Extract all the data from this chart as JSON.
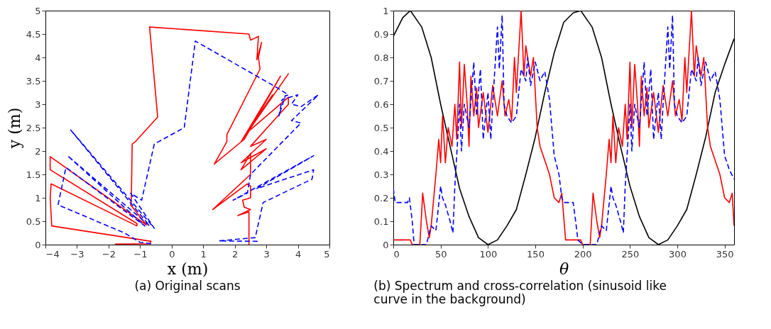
{
  "chart_data": [
    {
      "type": "line",
      "title": "(a) Original scans",
      "xlabel": "x (m)",
      "ylabel": "y (m)",
      "xlim": [
        -4,
        5
      ],
      "ylim": [
        0,
        5
      ],
      "xticks": [
        -4,
        -3,
        -2,
        -1,
        0,
        1,
        2,
        3,
        4,
        5
      ],
      "yticks": [
        0,
        0.5,
        1,
        1.5,
        2,
        2.5,
        3,
        3.5,
        4,
        4.5,
        5
      ],
      "grid": false,
      "series": [
        {
          "color": "#ff0000",
          "line_style": "solid",
          "x": [
            -1.8,
            -0.7,
            -0.65,
            -3.8,
            -3.85,
            -3.82,
            -1.1,
            -1.1,
            -3.85,
            -3.85,
            -0.8,
            -1.3,
            -1.28,
            -1.25,
            -1.15,
            -0.45,
            -0.45,
            -0.7,
            2.45,
            2.5,
            2.6,
            2.75,
            2.7,
            2.85,
            2.75,
            2.8,
            1.75,
            1.75,
            1.35,
            2.3,
            3.45,
            2.2,
            3.7,
            2.3,
            3.2,
            2.4,
            3.7,
            3.7,
            2.5,
            3.0,
            2.2,
            3.0,
            2.2,
            2.5,
            2.5,
            1.3,
            2.4,
            2.5,
            2.5,
            2.25,
            2.3,
            2.5,
            2.1,
            2.45,
            2.45
          ],
          "values": [
            0.01,
            0.02,
            0.07,
            0.4,
            1.0,
            1.3,
            0.4,
            0.45,
            1.6,
            1.88,
            0.42,
            0.85,
            0.9,
            2.15,
            2.2,
            2.72,
            2.78,
            4.65,
            4.5,
            4.37,
            4.4,
            4.45,
            3.95,
            4.32,
            4.0,
            3.75,
            2.35,
            2.2,
            1.72,
            2.25,
            3.6,
            2.2,
            3.65,
            2.3,
            3.2,
            2.4,
            3.15,
            3.0,
            2.1,
            2.25,
            1.75,
            2.05,
            1.6,
            1.95,
            1.5,
            0.75,
            1.3,
            1.25,
            1.0,
            0.95,
            0.8,
            0.75,
            0.62,
            0.7,
            0.0
          ]
        },
        {
          "color": "#0000ff",
          "line_style": "dashed",
          "x": [
            -0.65,
            -1.0,
            -1.5,
            -3.6,
            -3.35,
            -0.85,
            -3.3,
            -0.7,
            -3.2,
            -0.55,
            -1.3,
            -0.95,
            -0.55,
            0.4,
            0.75,
            3.35,
            3.7,
            3.6,
            3.4,
            3.5,
            4.0,
            3.8,
            4.1,
            4.65,
            3.8,
            4.1,
            2.5,
            2.4,
            1.95,
            4.5,
            2.7,
            4.5,
            4.45,
            2.9,
            2.65,
            1.5,
            2.75
          ],
          "values": [
            0.02,
            0.05,
            0.25,
            0.85,
            1.65,
            0.4,
            1.9,
            0.4,
            2.45,
            0.35,
            1.1,
            0.95,
            2.15,
            2.5,
            4.35,
            3.35,
            3.2,
            3.18,
            2.75,
            3.1,
            3.2,
            3.0,
            2.95,
            3.2,
            2.65,
            2.6,
            1.5,
            1.1,
            0.95,
            1.9,
            1.2,
            1.6,
            1.4,
            0.9,
            0.15,
            0.08,
            0.07
          ]
        }
      ]
    },
    {
      "type": "line",
      "title": "(b) Spectrum and cross-correlation (sinusoid like curve in the background)",
      "xlabel": "θ",
      "xlim": [
        0,
        360
      ],
      "ylim": [
        0,
        1
      ],
      "xticks": [
        0,
        50,
        100,
        150,
        200,
        250,
        300,
        350
      ],
      "yticks": [
        0,
        0.1,
        0.2,
        0.3,
        0.4,
        0.5,
        0.6,
        0.7,
        0.8,
        0.9,
        1
      ],
      "grid": false,
      "series": [
        {
          "color": "#000000",
          "line_style": "solid",
          "x": [
            0,
            10,
            18,
            30,
            40,
            50,
            60,
            70,
            80,
            90,
            100,
            110,
            120,
            130,
            140,
            150,
            160,
            170,
            180,
            190,
            198,
            210,
            220,
            230,
            240,
            250,
            260,
            270,
            280,
            290,
            300,
            310,
            320,
            330,
            340,
            350,
            360
          ],
          "values": [
            0.89,
            0.97,
            1.0,
            0.93,
            0.8,
            0.6,
            0.42,
            0.24,
            0.12,
            0.03,
            0.0,
            0.02,
            0.08,
            0.15,
            0.3,
            0.46,
            0.65,
            0.82,
            0.95,
            0.99,
            1.0,
            0.93,
            0.8,
            0.6,
            0.42,
            0.25,
            0.12,
            0.03,
            0.0,
            0.02,
            0.08,
            0.15,
            0.3,
            0.46,
            0.65,
            0.77,
            0.88
          ]
        },
        {
          "color": "#ff0000",
          "line_style": "solid",
          "x": [
            0,
            18,
            20,
            28,
            30,
            31,
            35,
            38,
            40,
            45,
            48,
            50,
            52,
            55,
            58,
            62,
            65,
            67,
            70,
            72,
            75,
            78,
            80,
            82,
            85,
            88,
            90,
            95,
            100,
            105,
            110,
            115,
            118,
            122,
            125,
            128,
            130,
            135,
            138,
            140,
            145,
            148,
            150,
            152,
            155,
            165,
            170,
            175,
            178,
            182,
            198,
            200,
            208,
            210,
            211,
            215,
            218,
            220,
            225,
            228,
            230,
            232,
            235,
            238,
            242,
            245,
            247,
            250,
            252,
            255,
            258,
            260,
            262,
            265,
            268,
            270,
            275,
            280,
            285,
            290,
            295,
            298,
            302,
            305,
            308,
            310,
            315,
            318,
            320,
            325,
            328,
            330,
            332,
            335,
            345,
            350,
            355,
            358,
            360
          ],
          "values": [
            0.02,
            0.02,
            0.0,
            0.0,
            0.14,
            0.22,
            0.1,
            0.03,
            0.08,
            0.3,
            0.45,
            0.35,
            0.55,
            0.35,
            0.5,
            0.42,
            0.6,
            0.45,
            0.78,
            0.5,
            0.77,
            0.6,
            0.42,
            0.72,
            0.55,
            0.67,
            0.5,
            0.65,
            0.48,
            0.68,
            0.55,
            0.7,
            0.55,
            0.62,
            0.53,
            0.8,
            0.65,
            1.0,
            0.72,
            0.85,
            0.72,
            0.8,
            0.65,
            0.5,
            0.42,
            0.3,
            0.2,
            0.18,
            0.22,
            0.02,
            0.02,
            0.0,
            0.0,
            0.14,
            0.22,
            0.1,
            0.03,
            0.08,
            0.3,
            0.45,
            0.35,
            0.55,
            0.35,
            0.5,
            0.42,
            0.6,
            0.45,
            0.78,
            0.5,
            0.77,
            0.6,
            0.42,
            0.72,
            0.55,
            0.67,
            0.5,
            0.65,
            0.48,
            0.68,
            0.55,
            0.7,
            0.55,
            0.62,
            0.53,
            0.8,
            0.65,
            1.0,
            0.72,
            0.85,
            0.72,
            0.8,
            0.65,
            0.5,
            0.42,
            0.3,
            0.2,
            0.18,
            0.22,
            0.08
          ]
        },
        {
          "color": "#0000ff",
          "line_style": "dashed",
          "x": [
            0,
            2,
            15,
            17,
            20,
            22,
            35,
            38,
            40,
            45,
            50,
            52,
            55,
            60,
            63,
            65,
            68,
            70,
            72,
            75,
            80,
            85,
            88,
            92,
            95,
            100,
            103,
            105,
            110,
            112,
            115,
            117,
            120,
            125,
            130,
            135,
            140,
            142,
            145,
            150,
            155,
            160,
            165,
            170,
            175,
            178,
            180,
            190,
            192,
            195,
            200,
            215,
            218,
            220,
            225,
            230,
            232,
            235,
            240,
            243,
            245,
            248,
            250,
            252,
            255,
            260,
            265,
            268,
            272,
            275,
            280,
            283,
            285,
            290,
            292,
            295,
            297,
            300,
            305,
            310,
            315,
            320,
            322,
            325,
            330,
            335,
            340,
            345,
            350,
            355,
            360
          ],
          "values": [
            0.24,
            0.18,
            0.18,
            0.2,
            0.1,
            0.0,
            0.0,
            0.05,
            0.08,
            0.06,
            0.25,
            0.2,
            0.17,
            0.1,
            0.05,
            0.25,
            0.45,
            0.6,
            0.4,
            0.6,
            0.5,
            0.78,
            0.55,
            0.75,
            0.45,
            0.65,
            0.45,
            0.6,
            0.93,
            0.75,
            0.98,
            0.6,
            0.55,
            0.52,
            0.55,
            0.75,
            0.7,
            0.8,
            0.68,
            0.78,
            0.7,
            0.74,
            0.62,
            0.38,
            0.3,
            0.2,
            0.18,
            0.18,
            0.12,
            0.02,
            0.0,
            0.0,
            0.05,
            0.08,
            0.06,
            0.25,
            0.2,
            0.17,
            0.1,
            0.05,
            0.25,
            0.45,
            0.6,
            0.4,
            0.6,
            0.5,
            0.78,
            0.55,
            0.75,
            0.45,
            0.65,
            0.45,
            0.6,
            0.93,
            0.75,
            0.98,
            0.6,
            0.55,
            0.52,
            0.55,
            0.75,
            0.7,
            0.8,
            0.68,
            0.78,
            0.7,
            0.74,
            0.62,
            0.38,
            0.32,
            0.28
          ]
        }
      ]
    }
  ]
}
